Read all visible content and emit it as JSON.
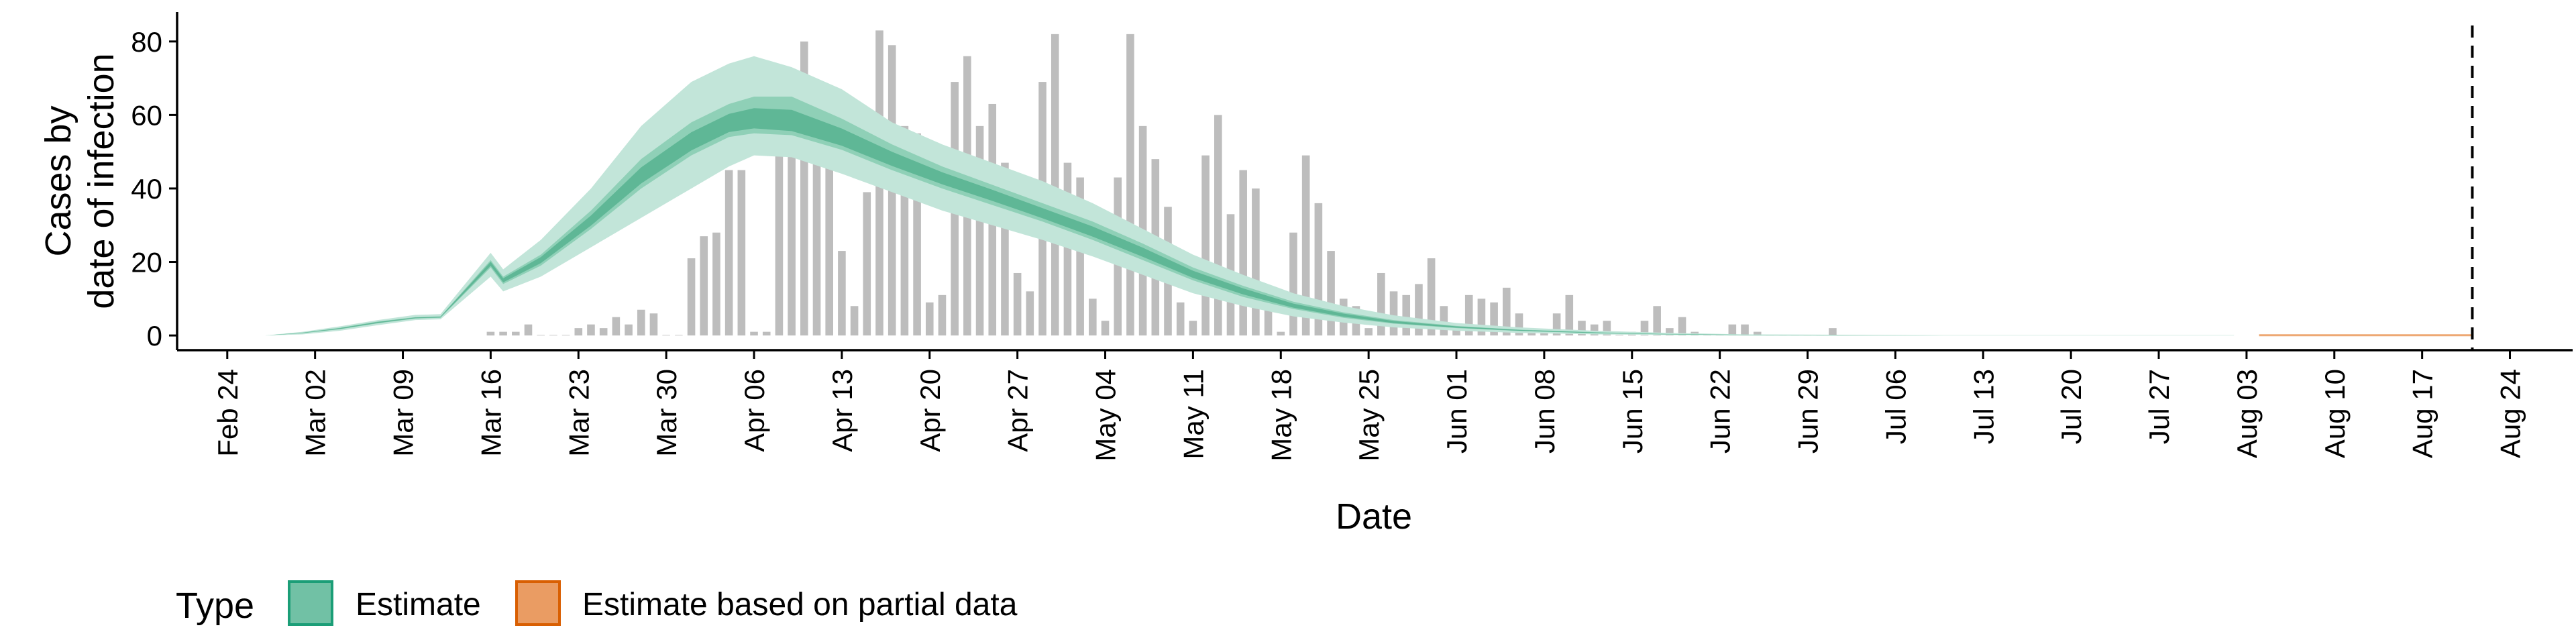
{
  "chart_data": {
    "type": "bar",
    "xlabel": "Date",
    "ylabel_lines": [
      "Cases by",
      "date of infection"
    ],
    "ylim": [
      -4,
      88
    ],
    "y_ticks": [
      0,
      20,
      40,
      60,
      80
    ],
    "x_start": "2020-02-20",
    "x_end": "2020-08-29",
    "x_ticks": [
      {
        "date": "2020-02-24",
        "label": "Feb 24"
      },
      {
        "date": "2020-03-02",
        "label": "Mar 02"
      },
      {
        "date": "2020-03-09",
        "label": "Mar 09"
      },
      {
        "date": "2020-03-16",
        "label": "Mar 16"
      },
      {
        "date": "2020-03-23",
        "label": "Mar 23"
      },
      {
        "date": "2020-03-30",
        "label": "Mar 30"
      },
      {
        "date": "2020-04-06",
        "label": "Apr 06"
      },
      {
        "date": "2020-04-13",
        "label": "Apr 13"
      },
      {
        "date": "2020-04-20",
        "label": "Apr 20"
      },
      {
        "date": "2020-04-27",
        "label": "Apr 27"
      },
      {
        "date": "2020-05-04",
        "label": "May 04"
      },
      {
        "date": "2020-05-11",
        "label": "May 11"
      },
      {
        "date": "2020-05-18",
        "label": "May 18"
      },
      {
        "date": "2020-05-25",
        "label": "May 25"
      },
      {
        "date": "2020-06-01",
        "label": "Jun 01"
      },
      {
        "date": "2020-06-08",
        "label": "Jun 08"
      },
      {
        "date": "2020-06-15",
        "label": "Jun 15"
      },
      {
        "date": "2020-06-22",
        "label": "Jun 22"
      },
      {
        "date": "2020-06-29",
        "label": "Jun 29"
      },
      {
        "date": "2020-07-06",
        "label": "Jul 06"
      },
      {
        "date": "2020-07-13",
        "label": "Jul 13"
      },
      {
        "date": "2020-07-20",
        "label": "Jul 20"
      },
      {
        "date": "2020-07-27",
        "label": "Jul 27"
      },
      {
        "date": "2020-08-03",
        "label": "Aug 03"
      },
      {
        "date": "2020-08-10",
        "label": "Aug 10"
      },
      {
        "date": "2020-08-17",
        "label": "Aug 17"
      },
      {
        "date": "2020-08-24",
        "label": "Aug 24"
      }
    ],
    "vline_date": "2020-08-21",
    "grid": false,
    "legend": {
      "position": "bottom",
      "title": "Type",
      "items": [
        {
          "label": "Estimate",
          "fill": "#71c1a5",
          "stroke": "#1b9e77"
        },
        {
          "label": "Estimate based on partial data",
          "fill": "#ea9c63",
          "stroke": "#d95f02"
        }
      ]
    },
    "colors": {
      "bars": "#bdbdbd",
      "estimate_outer": "#c2e5d9",
      "estimate_mid": "#8fd0b7",
      "estimate_inner": "#5fb796",
      "partial_outer": "#f6d2b5",
      "partial_inner": "#eea873",
      "vline": "#000000"
    },
    "bars": {
      "start": "2020-03-16",
      "values": [
        1,
        1,
        1,
        3,
        0,
        0,
        0,
        2,
        3,
        2,
        5,
        3,
        7,
        6,
        0,
        0,
        21,
        27,
        28,
        45,
        45,
        1,
        1,
        73,
        69,
        80,
        56,
        47,
        23,
        8,
        39,
        83,
        79,
        57,
        55,
        9,
        11,
        69,
        76,
        57,
        63,
        47,
        17,
        12,
        69,
        82,
        47,
        43,
        10,
        4,
        43,
        82,
        57,
        48,
        35,
        9,
        4,
        49,
        60,
        33,
        45,
        40,
        8,
        1,
        28,
        49,
        36,
        23,
        10,
        8,
        2,
        17,
        12,
        11,
        14,
        21,
        8,
        2,
        11,
        10,
        9,
        13,
        6,
        1,
        1,
        6,
        11,
        4,
        3,
        4,
        0,
        1,
        4,
        8,
        2,
        5,
        1,
        0,
        0,
        3,
        3,
        1,
        0,
        0,
        0,
        0,
        0,
        2
      ]
    },
    "series": [
      {
        "name": "Estimate",
        "x": [
          "2020-02-27",
          "2020-03-01",
          "2020-03-04",
          "2020-03-07",
          "2020-03-10",
          "2020-03-12",
          "2020-03-16",
          "2020-03-17",
          "2020-03-20",
          "2020-03-24",
          "2020-03-28",
          "2020-04-01",
          "2020-04-04",
          "2020-04-06",
          "2020-04-09",
          "2020-04-13",
          "2020-04-17",
          "2020-04-21",
          "2020-04-25",
          "2020-04-29",
          "2020-05-03",
          "2020-05-07",
          "2020-05-11",
          "2020-05-15",
          "2020-05-19",
          "2020-05-23",
          "2020-05-27",
          "2020-06-01",
          "2020-06-06",
          "2020-06-12",
          "2020-06-18",
          "2020-06-24",
          "2020-07-01",
          "2020-07-10",
          "2020-07-20",
          "2020-08-02"
        ],
        "lo90": [
          0,
          0.3,
          1.3,
          2.8,
          4.2,
          4.4,
          16,
          12,
          16,
          24,
          32,
          40,
          46,
          49,
          48.5,
          44,
          39,
          34,
          30,
          26,
          21.5,
          16.5,
          11.5,
          8,
          5.2,
          3.5,
          2.2,
          1.3,
          0.7,
          0.3,
          0.1,
          0,
          0,
          0,
          0,
          0
        ],
        "lo50": [
          0,
          0.6,
          1.7,
          3.3,
          4.6,
          4.8,
          18.5,
          14,
          19,
          29,
          40,
          49,
          54,
          55,
          54.5,
          50.5,
          45,
          40,
          35.5,
          31,
          26,
          20.5,
          15,
          10.5,
          7.2,
          4.8,
          3.2,
          2,
          1.2,
          0.6,
          0.3,
          0.1,
          0,
          0,
          0,
          0
        ],
        "median": [
          0,
          0.7,
          1.9,
          3.5,
          4.8,
          5.0,
          19.5,
          15,
          20.5,
          31,
          43,
          52,
          57,
          58,
          57,
          53,
          47.5,
          42.5,
          38,
          33,
          28,
          22.5,
          16.5,
          12,
          8,
          5.5,
          3.6,
          2.3,
          1.4,
          0.7,
          0.3,
          0.1,
          0.05,
          0,
          0,
          0
        ],
        "hi50": [
          0,
          0.8,
          2.1,
          3.8,
          5.0,
          5.2,
          20.5,
          16,
          22,
          34,
          48,
          58,
          63,
          65,
          65,
          59,
          52,
          46,
          41,
          36,
          31,
          25,
          18.5,
          13.5,
          9.2,
          6.3,
          4.2,
          2.6,
          1.6,
          0.9,
          0.4,
          0.2,
          0.1,
          0,
          0,
          0
        ],
        "hi90": [
          0,
          1.0,
          2.5,
          4.2,
          5.6,
          5.8,
          22.5,
          18,
          26,
          40,
          57,
          69,
          74,
          76,
          73,
          67,
          58,
          52,
          47,
          42,
          36,
          29,
          22,
          16.5,
          11.5,
          8,
          5.5,
          3.4,
          2.2,
          1.3,
          0.7,
          0.3,
          0.2,
          0.1,
          0.1,
          0.1
        ]
      },
      {
        "name": "Estimate based on partial data",
        "x": [
          "2020-08-04",
          "2020-08-21"
        ],
        "lo90": [
          0,
          0
        ],
        "median": [
          0.05,
          0.05
        ],
        "hi90": [
          0.25,
          0.25
        ]
      }
    ]
  }
}
